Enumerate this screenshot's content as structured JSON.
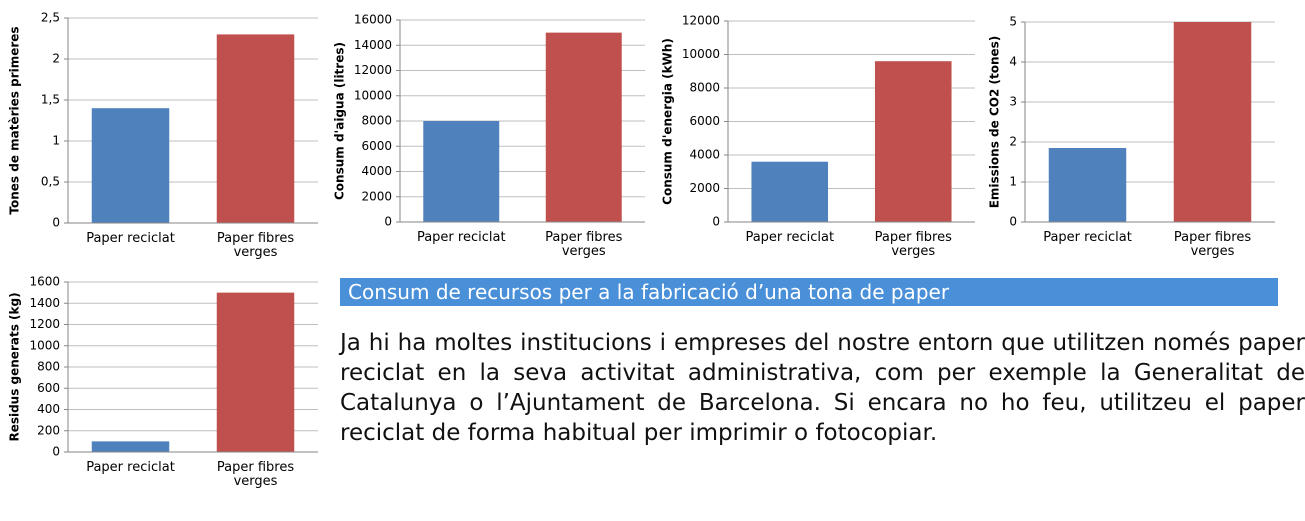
{
  "chart_data": [
    {
      "type": "bar",
      "ylabel": "Tones de matèries primeres",
      "categories": [
        "Paper reciclat",
        "Paper fibres verges"
      ],
      "values": [
        1.4,
        2.3
      ],
      "colors": [
        "#4f81bd",
        "#c0504d"
      ],
      "ylim": [
        0,
        2.5
      ],
      "yticks": [
        0,
        {
          "value": 0.5,
          "label": "0,5"
        },
        1,
        {
          "value": 1.5,
          "label": "1,5"
        },
        2,
        {
          "value": 2.5,
          "label": "2,5"
        }
      ],
      "grid": true
    },
    {
      "type": "bar",
      "ylabel": "Consum d'aigua (litres)",
      "categories": [
        "Paper reciclat",
        "Paper fibres verges"
      ],
      "values": [
        8000,
        15000
      ],
      "colors": [
        "#4f81bd",
        "#c0504d"
      ],
      "ylim": [
        0,
        16000
      ],
      "yticks": [
        0,
        2000,
        4000,
        6000,
        8000,
        10000,
        12000,
        14000,
        16000
      ],
      "grid": true
    },
    {
      "type": "bar",
      "ylabel": "Consum d'energia (kWh)",
      "categories": [
        "Paper reciclat",
        "Paper fibres verges"
      ],
      "values": [
        3600,
        9600
      ],
      "colors": [
        "#4f81bd",
        "#c0504d"
      ],
      "ylim": [
        0,
        12000
      ],
      "yticks": [
        0,
        2000,
        4000,
        6000,
        8000,
        10000,
        12000
      ],
      "grid": true
    },
    {
      "type": "bar",
      "ylabel": "Emissions de CO2 (tones)",
      "categories": [
        "Paper reciclat",
        "Paper fibres verges"
      ],
      "values": [
        1.85,
        5
      ],
      "colors": [
        "#4f81bd",
        "#c0504d"
      ],
      "ylim": [
        0,
        5
      ],
      "yticks": [
        0,
        1,
        2,
        3,
        4,
        5
      ],
      "grid": true
    },
    {
      "type": "bar",
      "ylabel": "Residus generats (kg)",
      "categories": [
        "Paper reciclat",
        "Paper fibres verges"
      ],
      "values": [
        100,
        1500
      ],
      "colors": [
        "#4f81bd",
        "#c0504d"
      ],
      "ylim": [
        0,
        1600
      ],
      "yticks": [
        0,
        200,
        400,
        600,
        800,
        1000,
        1200,
        1400,
        1600
      ],
      "grid": true
    }
  ],
  "heading": "Consum de recursos per a la fabricació d’una tona de paper",
  "paragraph": "Ja hi ha moltes institucions i empreses del nostre entorn que utilitzen només paper reciclat en la seva activitat administra­tiva, com per exemple la Generalitat de Catalunya o l’Ajuntament de Barcelona. Si encara no ho feu, utilitzeu el paper reciclat de forma habitual per imprimir o fotocopiar."
}
